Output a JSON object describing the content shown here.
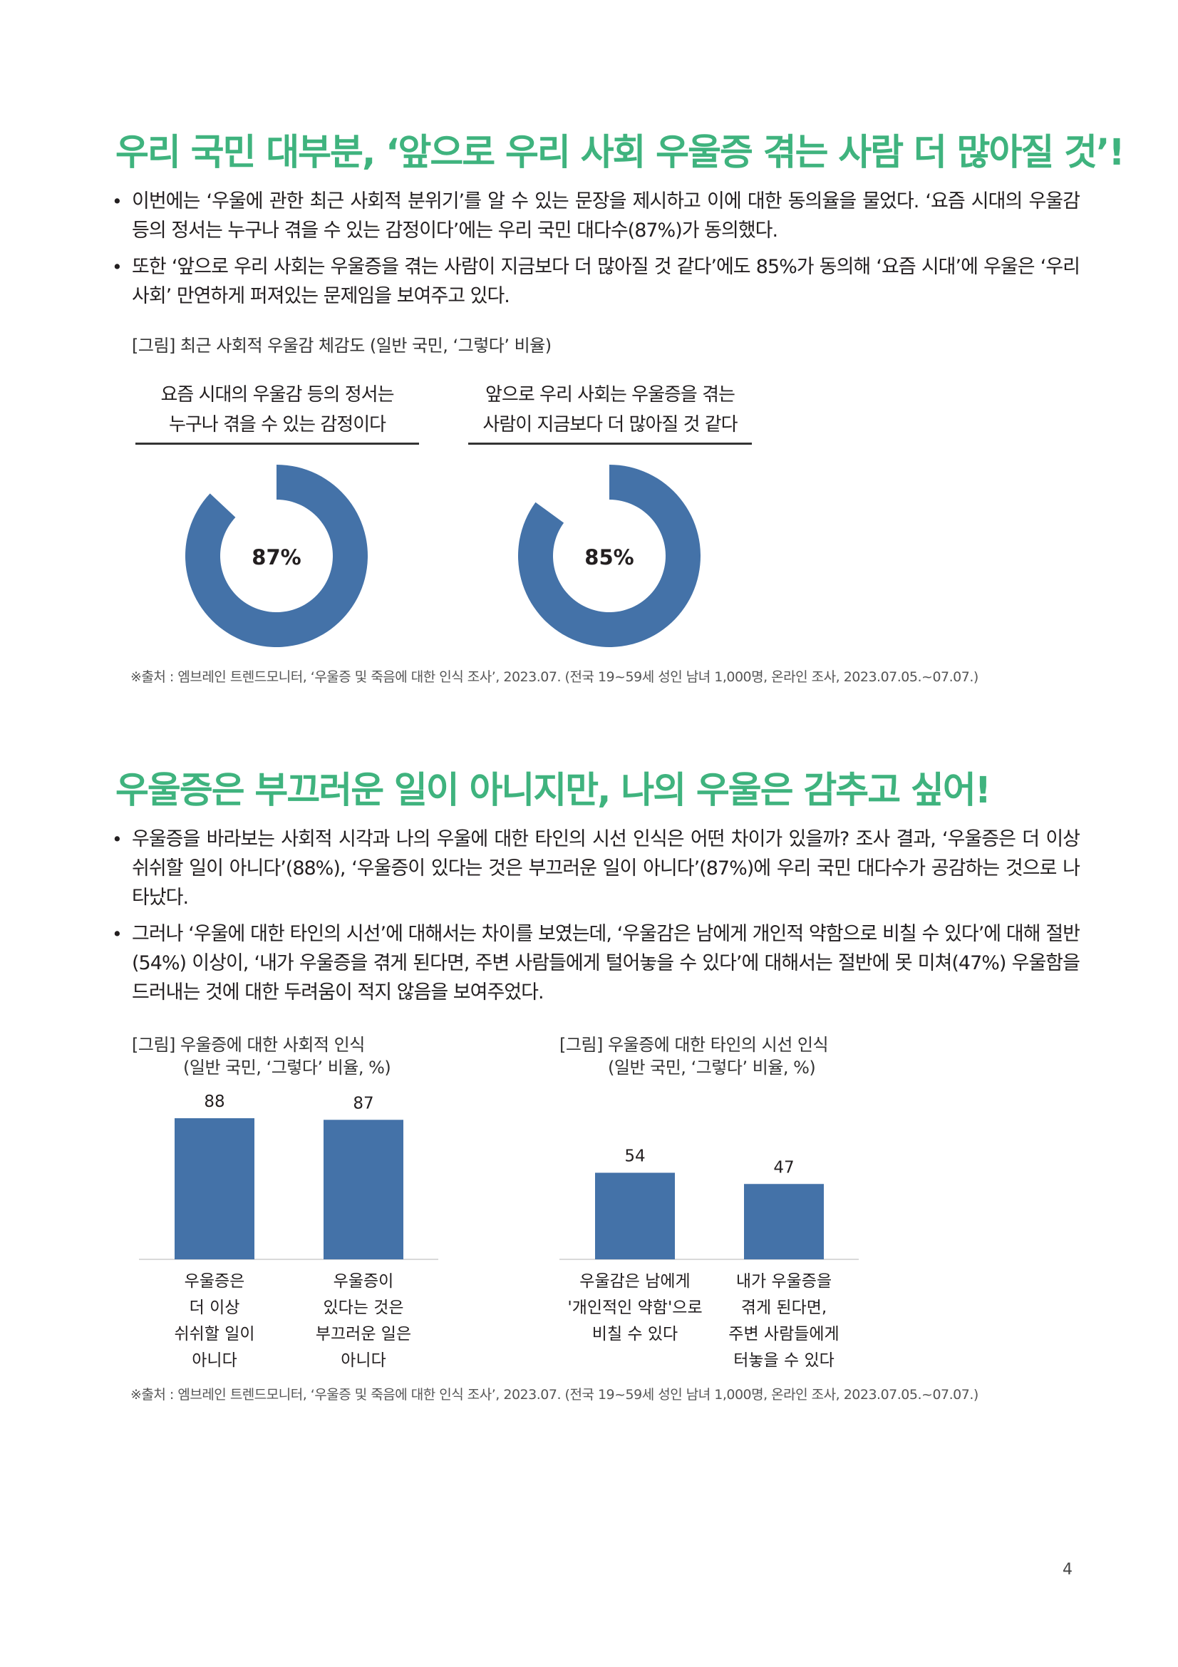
{
  "colors": {
    "heading": "#3fb37e",
    "chart_fill": "#4472a8",
    "donut_remainder": "#ffffff",
    "text": "#231f20"
  },
  "section1": {
    "heading": "우리 국민 대부분, ‘앞으로 우리 사회 우울증 겪는 사람 더 많아질 것’!",
    "bullets": [
      "이번에는 ‘우울에 관한 최근 사회적 분위기’를 알 수 있는 문장을 제시하고 이에 대한 동의율을 물었다. ‘요즘 시대의 우울감 등의 정서는 누구나 겪을 수 있는 감정이다’에는 우리 국민 대다수(87%)가 동의했다.",
      "또한 ‘앞으로 우리 사회는 우울증을 겪는 사람이 지금보다 더 많아질 것 같다’에도 85%가 동의해 ‘요즘 시대’에 우울은 ‘우리 사회’ 만연하게 퍼져있는 문제임을 보여주고 있다."
    ],
    "figure_caption": "[그림] 최근 사회적 우울감 체감도 (일반 국민, ‘그렇다’ 비율)",
    "source": "※출처 : 엠브레인 트렌드모니터, ‘우울증 및 죽음에 대한 인식 조사’, 2023.07. (전국 19~59세 성인 남녀 1,000명, 온라인 조사, 2023.07.05.~07.07.)"
  },
  "section2": {
    "heading": "우울증은 부끄러운 일이 아니지만, 나의 우울은 감추고 싶어!",
    "bullets": [
      "우울증을 바라보는 사회적 시각과 나의 우울에 대한 타인의 시선 인식은 어떤 차이가 있을까? 조사 결과, ‘우울증은 더 이상 쉬쉬할 일이 아니다’(88%), ‘우울증이 있다는 것은 부끄러운 일이 아니다’(87%)에 우리 국민 대다수가 공감하는 것으로 나타났다.",
      "그러나 ‘우울에 대한 타인의 시선’에 대해서는 차이를 보였는데, ‘우울감은 남에게 개인적 약함으로 비칠 수 있다’에 대해 절반(54%) 이상이, ‘내가 우울증을 겪게 된다면, 주변 사람들에게 털어놓을 수 있다’에 대해서는 절반에 못 미쳐(47%) 우울함을 드러내는 것에 대한 두려움이 적지 않음을 보여주었다."
    ],
    "chart1_caption": [
      "[그림] 우울증에 대한 사회적 인식",
      "(일반 국민, ‘그렇다’ 비율, %)"
    ],
    "chart2_caption": [
      "[그림] 우울증에 대한 타인의 시선 인식",
      "(일반 국민, ‘그렇다’ 비율, %)"
    ],
    "source": "※출처 : 엠브레인 트렌드모니터, ‘우울증 및 죽음에 대한 인식 조사’, 2023.07. (전국 19~59세 성인 남녀 1,000명, 온라인 조사, 2023.07.05.~07.07.)"
  },
  "page_number": "4",
  "chart_data": [
    {
      "type": "pie",
      "title": "요즘 시대의 우울감 등의 정서는 누구나 겪을 수 있는 감정이다",
      "title_lines": [
        "요즘 시대의 우울감 등의 정서는",
        "누구나 겪을 수 있는 감정이다"
      ],
      "value": 87,
      "value_label": "87%"
    },
    {
      "type": "pie",
      "title": "앞으로 우리 사회는 우울증을 겪는 사람이 지금보다 더 많아질 것 같다",
      "title_lines": [
        "앞으로 우리 사회는 우울증을 겪는",
        "사람이 지금보다 더 많아질 것 같다"
      ],
      "value": 85,
      "value_label": "85%"
    },
    {
      "type": "bar",
      "categories": [
        [
          "우울증은",
          "더 이상",
          "쉬쉬할 일이",
          "아니다"
        ],
        [
          "우울증이",
          "있다는 것은",
          "부끄러운 일은",
          "아니다"
        ]
      ],
      "values": [
        88,
        87
      ],
      "ylim": [
        0,
        100
      ]
    },
    {
      "type": "bar",
      "categories": [
        [
          "우울감은 남에게",
          "'개인적인 약함'으로",
          "비칠 수 있다"
        ],
        [
          "내가 우울증을",
          "겪게 된다면,",
          "주변 사람들에게",
          "터놓을 수 있다"
        ]
      ],
      "values": [
        54,
        47
      ],
      "ylim": [
        0,
        100
      ]
    }
  ]
}
